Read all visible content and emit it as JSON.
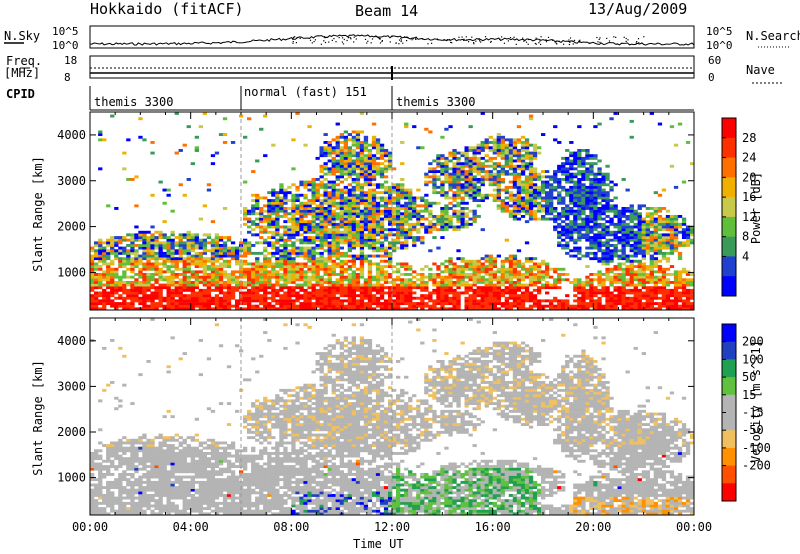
{
  "header": {
    "station": "Hokkaido (fitACF)",
    "beam": "Beam 14",
    "date": "13/Aug/2009"
  },
  "side_labels": {
    "nsky": "N.Sky",
    "nsearch": "N.Search",
    "freq_line1": "Freq.",
    "freq_line2": "[MHz]",
    "nave": "Nave",
    "cpid": "CPID"
  },
  "noise_panel": {
    "left_ticks": [
      "10^5",
      "10^0"
    ],
    "right_ticks": [
      "10^5",
      "10^0"
    ]
  },
  "freq_panel": {
    "left_ticks": [
      "18",
      "8"
    ],
    "right_ticks": [
      "60",
      "0"
    ]
  },
  "cpid_segments": [
    {
      "label": "themis 3300",
      "start": 0,
      "end": 6
    },
    {
      "label": "normal (fast) 151",
      "start": 6,
      "end": 12
    },
    {
      "label": "themis 3300",
      "start": 12,
      "end": 24
    }
  ],
  "colors": {
    "power_scale": [
      "#0000ff",
      "#2040d0",
      "#3a9a5a",
      "#5fbf3a",
      "#c8c84a",
      "#f0b000",
      "#ff7000",
      "#ff3000",
      "#ff0000"
    ],
    "velocity_scale": [
      "#ff0000",
      "#ff5000",
      "#ff9000",
      "#f0c060",
      "#b4b4b4",
      "#b4b4b4",
      "#60c040",
      "#20a050",
      "#2040c0",
      "#0000ff"
    ]
  },
  "chart_data": [
    {
      "type": "heatmap",
      "name": "power",
      "xlabel": "",
      "ylabel": "Slant Range [km]",
      "colorbar_label": "Power [dB]",
      "colorbar_ticks": [
        "28",
        "24",
        "20",
        "16",
        "12",
        "8",
        "4"
      ],
      "xlim": [
        0,
        24
      ],
      "ylim": [
        180,
        4500
      ],
      "y_ticks": [
        "4000",
        "3000",
        "2000",
        "1000"
      ],
      "x_ticks": [
        "00:00",
        "04:00",
        "08:00",
        "12:00",
        "16:00",
        "20:00",
        "00:00"
      ]
    },
    {
      "type": "heatmap",
      "name": "velocity",
      "xlabel": "Time UT",
      "ylabel": "Slant Range [km]",
      "colorbar_label": "Velocity [m s^-1]",
      "colorbar_ticks": [
        "200",
        "100",
        "50",
        "15",
        "-15",
        "-50",
        "-100",
        "-200"
      ],
      "xlim": [
        0,
        24
      ],
      "ylim": [
        180,
        4500
      ],
      "y_ticks": [
        "4000",
        "3000",
        "2000",
        "1000"
      ],
      "x_ticks": [
        "00:00",
        "04:00",
        "08:00",
        "12:00",
        "16:00",
        "20:00",
        "00:00"
      ]
    }
  ]
}
